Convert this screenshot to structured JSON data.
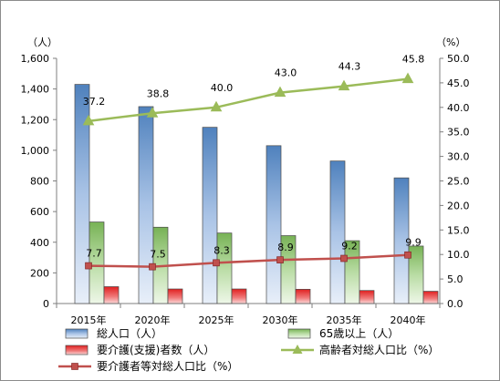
{
  "chart_data": {
    "type": "bar",
    "categories": [
      "2015年",
      "2020年",
      "2025年",
      "2030年",
      "2035年",
      "2040年"
    ],
    "left_axis": {
      "unit": "（人）",
      "min": 0,
      "max": 1600,
      "step": 200,
      "ticks": [
        "0",
        "200",
        "400",
        "600",
        "800",
        "1,000",
        "1,200",
        "1,400",
        "1,600"
      ]
    },
    "right_axis": {
      "unit": "（%）",
      "min": 0,
      "max": 50,
      "step": 5,
      "ticks": [
        "0.0",
        "5.0",
        "10.0",
        "15.0",
        "20.0",
        "25.0",
        "30.0",
        "35.0",
        "40.0",
        "45.0",
        "50.0"
      ]
    },
    "series": [
      {
        "name": "総人口（人）",
        "kind": "bar",
        "axis": "left",
        "color": "#4f81bd",
        "values": [
          1430,
          1285,
          1150,
          1030,
          930,
          820
        ]
      },
      {
        "name": "65歳以上（人）",
        "kind": "bar",
        "axis": "left",
        "color": "#77b255",
        "values": [
          532,
          498,
          460,
          443,
          410,
          375
        ]
      },
      {
        "name": "要介護(支援)者数（人）",
        "kind": "bar",
        "axis": "left",
        "color": "#e02020",
        "values": [
          110,
          95,
          95,
          93,
          85,
          80
        ]
      },
      {
        "name": "高齢者対総人口比（%）",
        "kind": "line",
        "axis": "right",
        "color": "#9bbb59",
        "marker": "triangle",
        "values": [
          37.2,
          38.8,
          40.0,
          43.0,
          44.3,
          45.8
        ],
        "labels": [
          "37.2",
          "38.8",
          "40.0",
          "43.0",
          "44.3",
          "45.8"
        ]
      },
      {
        "name": "要介護者等対総人口比（%）",
        "kind": "line",
        "axis": "right",
        "color": "#c0504d",
        "marker": "square",
        "values": [
          7.7,
          7.5,
          8.3,
          8.9,
          9.2,
          9.9
        ],
        "labels": [
          "7.7",
          "7.5",
          "8.3",
          "8.9",
          "9.2",
          "9.9"
        ]
      }
    ],
    "grid": false,
    "legend_position": "bottom"
  }
}
